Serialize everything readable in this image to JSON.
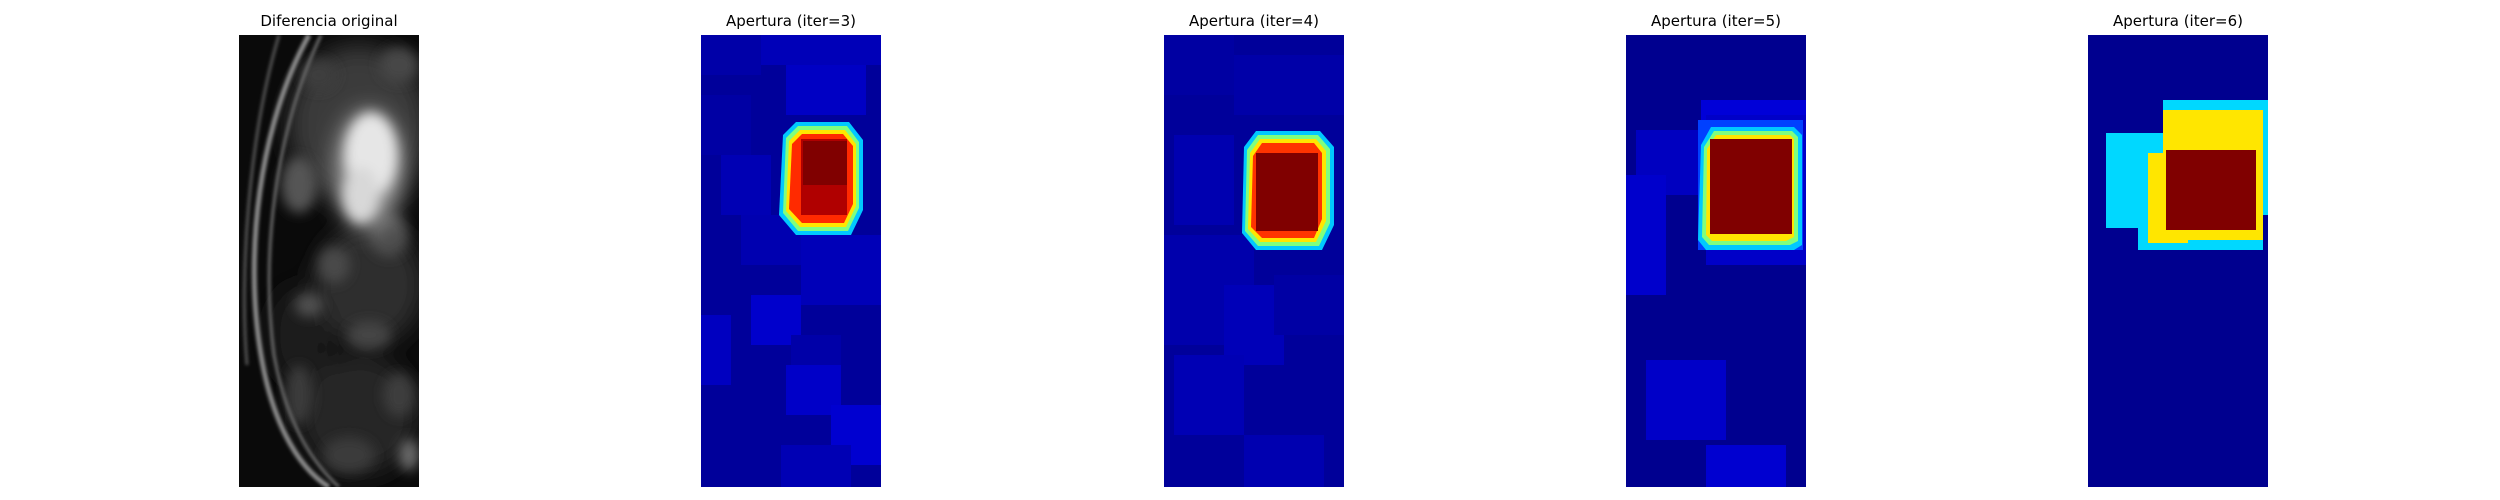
{
  "panels": [
    {
      "title": "Diferencia original",
      "colormap": "gray"
    },
    {
      "title": "Apertura (iter=3)",
      "colormap": "jet"
    },
    {
      "title": "Apertura (iter=4)",
      "colormap": "jet"
    },
    {
      "title": "Apertura (iter=5)",
      "colormap": "jet"
    },
    {
      "title": "Apertura (iter=6)",
      "colormap": "jet"
    }
  ],
  "colors": {
    "jet_background": "#00008f",
    "jet_dark_red": "#800000",
    "jet_red": "#ff0000",
    "jet_yellow": "#ffe600",
    "jet_cyan": "#00d8ff",
    "jet_blue": "#0000d0"
  }
}
